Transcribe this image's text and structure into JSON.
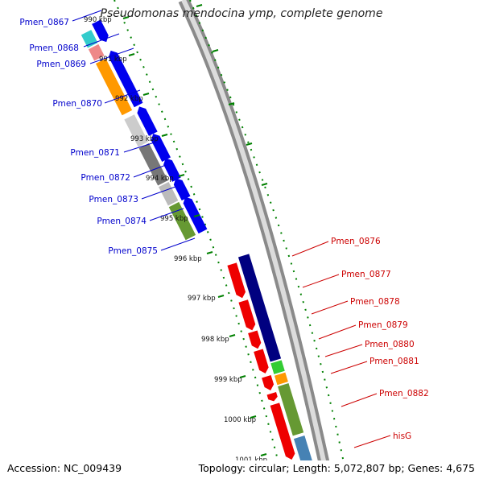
{
  "title": "Pseudomonas mendocina ymp, complete genome",
  "footer": {
    "accession": "Accession: NC_009439",
    "topology": "Topology: circular; Length: 5,072,807 bp; Genes: 4,675"
  },
  "colors": {
    "backbone": "#8a8a8a",
    "left_gene_label": "#0000cc",
    "right_gene_label": "#cc0000",
    "tick_green": "#008000"
  },
  "scale_ticks": [
    "990 kbp",
    "991 kbp",
    "992 kbp",
    "993 kbp",
    "994 kbp",
    "995 kbp",
    "996 kbp",
    "997 kbp",
    "998 kbp",
    "999 kbp",
    "1000 kbp",
    "1001 kbp"
  ],
  "left_labels": [
    "Pmen_0867",
    "Pmen_0868",
    "Pmen_0869",
    "Pmen_0870",
    "Pmen_0871",
    "Pmen_0872",
    "Pmen_0873",
    "Pmen_0874",
    "Pmen_0875"
  ],
  "right_labels": [
    "Pmen_0876",
    "Pmen_0877",
    "Pmen_0878",
    "Pmen_0879",
    "Pmen_0880",
    "Pmen_0881",
    "Pmen_0882",
    "hisG"
  ]
}
